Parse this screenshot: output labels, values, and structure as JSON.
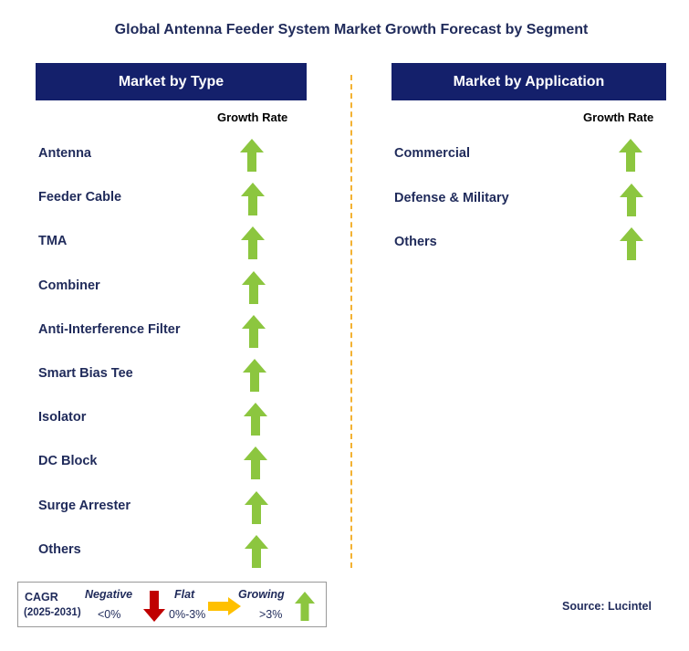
{
  "title": "Global Antenna Feeder System Market Growth Forecast by Segment",
  "left_panel": {
    "header": "Market by Type",
    "column_label": "Growth Rate",
    "items": [
      {
        "label": "Antenna",
        "trend": "growing"
      },
      {
        "label": "Feeder Cable",
        "trend": "growing"
      },
      {
        "label": "TMA",
        "trend": "growing"
      },
      {
        "label": "Combiner",
        "trend": "growing"
      },
      {
        "label": "Anti-Interference Filter",
        "trend": "growing"
      },
      {
        "label": "Smart Bias Tee",
        "trend": "growing"
      },
      {
        "label": "Isolator",
        "trend": "growing"
      },
      {
        "label": "DC Block",
        "trend": "growing"
      },
      {
        "label": "Surge Arrester",
        "trend": "growing"
      },
      {
        "label": "Others",
        "trend": "growing"
      }
    ]
  },
  "right_panel": {
    "header": "Market by Application",
    "column_label": "Growth Rate",
    "items": [
      {
        "label": "Commercial",
        "trend": "growing"
      },
      {
        "label": "Defense & Military",
        "trend": "growing"
      },
      {
        "label": "Others",
        "trend": "growing"
      }
    ]
  },
  "legend": {
    "cagr_label": "CAGR",
    "period": "(2025-2031)",
    "negative_label": "Negative",
    "negative_range": "<0%",
    "flat_label": "Flat",
    "flat_range": "0%-3%",
    "growing_label": "Growing",
    "growing_range": ">3%"
  },
  "source": "Source: Lucintel",
  "colors": {
    "header_bg": "#14206b",
    "text": "#1f2a5a",
    "growing": "#8cc63f",
    "negative": "#c00000",
    "flat": "#ffc000",
    "divider": "#f3b233"
  }
}
